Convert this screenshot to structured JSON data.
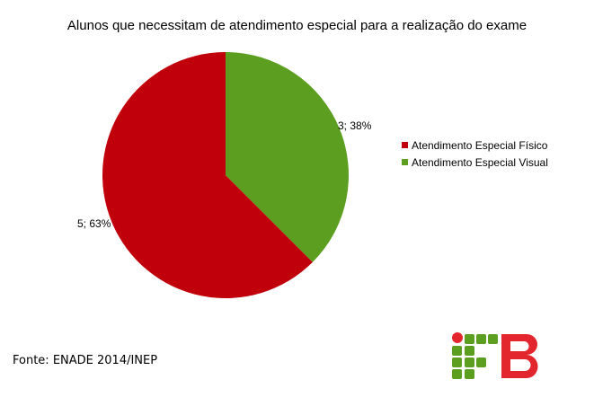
{
  "chart_data": {
    "type": "pie",
    "title": "Alunos que necessitam de atendimento especial para a realização do exame",
    "slices": [
      {
        "name": "Atendimento Especial Visual",
        "value": 3,
        "percent": 38,
        "label": "3; 38%",
        "color": "#5c9e1f"
      },
      {
        "name": "Atendimento Especial Físico",
        "value": 5,
        "percent": 63,
        "label": "5; 63%",
        "color": "#c0000b"
      }
    ],
    "legend_placement": "right"
  },
  "legend": {
    "items": [
      {
        "label": "Atendimento Especial Físico",
        "color": "#c0000b"
      },
      {
        "label": "Atendimento Especial Visual",
        "color": "#5c9e1f"
      }
    ]
  },
  "source_text": "Fonte: ENADE 2014/INEP",
  "logo": {
    "text": "IFB",
    "colors": {
      "green": "#5c9e1f",
      "red": "#e3262d"
    }
  }
}
